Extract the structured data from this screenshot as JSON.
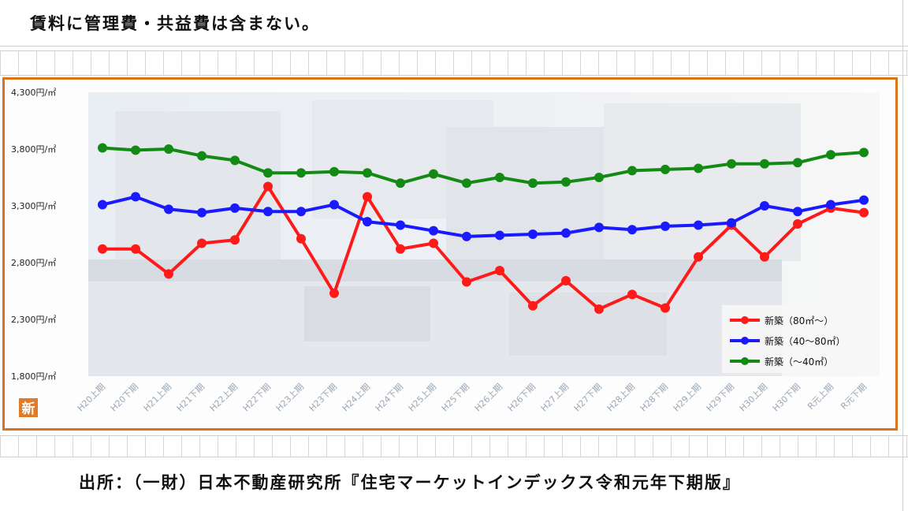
{
  "header": {
    "note": "賃料に管理費・共益費は含まない。"
  },
  "footer": {
    "source": "出所：（一財）日本不動産研究所『住宅マーケットインデックス令和元年下期版』"
  },
  "logo": {
    "glyph": "新"
  },
  "colors": {
    "frame": "#d9731c",
    "red": "#ff1a1a",
    "blue": "#1a1aff",
    "green": "#138a13"
  },
  "chart_data": {
    "type": "line",
    "categories": [
      "H20上期",
      "H20下期",
      "H21上期",
      "H21下期",
      "H22上期",
      "H22下期",
      "H23上期",
      "H23下期",
      "H24上期",
      "H24下期",
      "H25上期",
      "H25下期",
      "H26上期",
      "H26下期",
      "H27上期",
      "H27下期",
      "H28上期",
      "H28下期",
      "H29上期",
      "H29下期",
      "H30上期",
      "H30下期",
      "R元上期",
      "R元下期"
    ],
    "ytick_labels": [
      "1,800円/㎡",
      "2,300円/㎡",
      "2,800円/㎡",
      "3,300円/㎡",
      "3,800円/㎡",
      "4,300円/㎡"
    ],
    "yticks": [
      1800,
      2300,
      2800,
      3300,
      3800,
      4300
    ],
    "ylim": [
      1800,
      4300
    ],
    "grid": false,
    "legend_position": "bottom-right",
    "series": [
      {
        "name": "新築（80㎡～）",
        "color": "#ff1a1a",
        "values": [
          2920,
          2920,
          2700,
          2970,
          3000,
          3470,
          3010,
          2530,
          3380,
          2920,
          2970,
          2630,
          2730,
          2420,
          2640,
          2390,
          2520,
          2400,
          2850,
          3130,
          2850,
          3140,
          3280,
          3240
        ]
      },
      {
        "name": "新築（40～80㎡）",
        "color": "#1a1aff",
        "values": [
          3310,
          3380,
          3270,
          3240,
          3280,
          3250,
          3250,
          3310,
          3160,
          3130,
          3080,
          3030,
          3040,
          3050,
          3060,
          3110,
          3090,
          3120,
          3130,
          3150,
          3300,
          3250,
          3310,
          3350
        ]
      },
      {
        "name": "新築（～40㎡）",
        "color": "#138a13",
        "values": [
          3810,
          3790,
          3800,
          3740,
          3700,
          3590,
          3590,
          3600,
          3590,
          3500,
          3580,
          3500,
          3550,
          3500,
          3510,
          3550,
          3610,
          3620,
          3630,
          3670,
          3670,
          3680,
          3750,
          3770
        ]
      }
    ]
  }
}
